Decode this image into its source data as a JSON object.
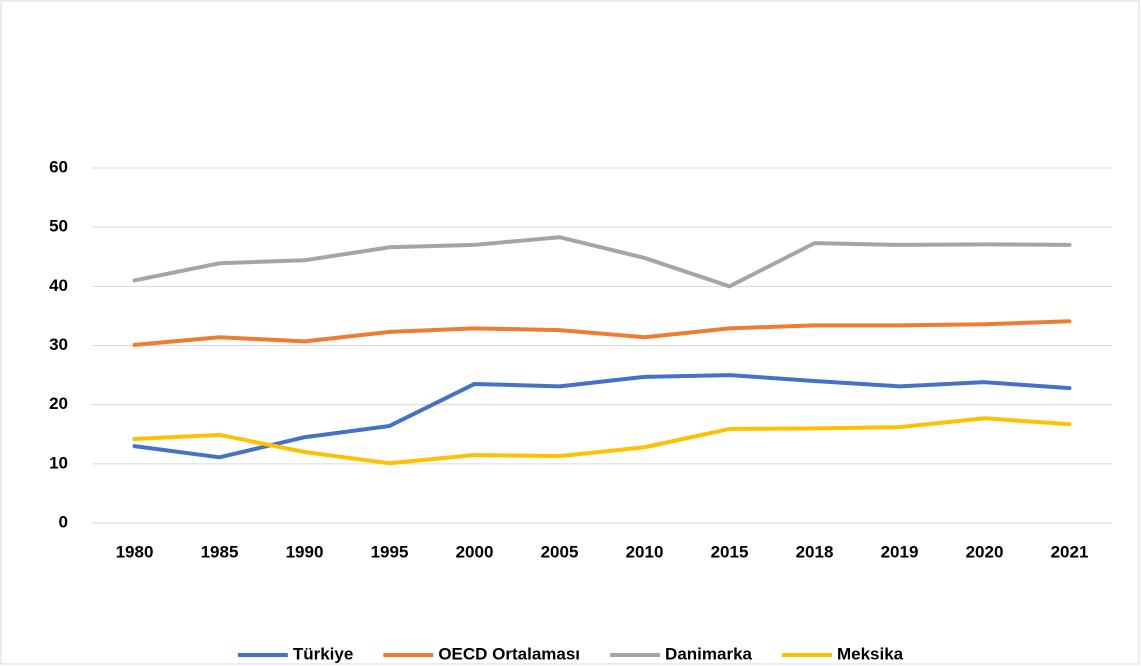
{
  "chart_data": {
    "type": "line",
    "categories": [
      "1980",
      "1985",
      "1990",
      "1995",
      "2000",
      "2005",
      "2010",
      "2015",
      "2018",
      "2019",
      "2020",
      "2021"
    ],
    "series": [
      {
        "name": "Türkiye",
        "color": "#4472c4",
        "values": [
          13.0,
          11.1,
          14.5,
          16.4,
          23.5,
          23.1,
          24.7,
          25.0,
          24.0,
          23.1,
          23.8,
          22.8
        ]
      },
      {
        "name": "OECD Ortalaması",
        "color": "#ed7d31",
        "values": [
          30.1,
          31.4,
          30.7,
          32.3,
          32.9,
          32.6,
          31.4,
          32.9,
          33.4,
          33.4,
          33.6,
          34.1
        ]
      },
      {
        "name": "Danimarka",
        "color": "#a5a5a5",
        "values": [
          41.0,
          43.9,
          44.4,
          46.6,
          47.0,
          48.3,
          44.8,
          40.0,
          47.3,
          47.0,
          47.1,
          47.0
        ]
      },
      {
        "name": "Meksika",
        "color": "#ffc000",
        "values": [
          14.2,
          14.9,
          12.0,
          10.1,
          11.5,
          11.3,
          12.8,
          15.9,
          16.0,
          16.2,
          17.7,
          16.7
        ]
      }
    ],
    "ylim": [
      0,
      60
    ],
    "yticks": [
      0,
      10,
      20,
      30,
      40,
      50,
      60
    ],
    "grid": true,
    "legend": "bottom"
  }
}
